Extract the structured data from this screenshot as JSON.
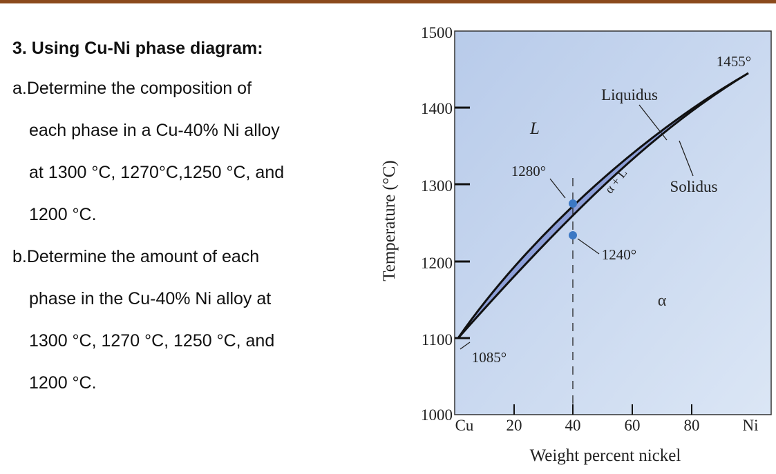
{
  "question": {
    "title": "3. Using Cu-Ni phase diagram:",
    "lines": [
      "a.Determine the composition of",
      "each phase in a Cu-40% Ni alloy",
      "at 1300 °C, 1270°C,1250 °C, and",
      "1200 °C.",
      "b.Determine the amount of each",
      "phase in the Cu-40% Ni alloy at",
      "1300 °C, 1270 °C, 1250 °C, and",
      "1200 °C."
    ]
  },
  "diagram": {
    "x_axis_label": "Weight percent nickel",
    "y_axis_label": "Temperature (°C)",
    "x_ticks": [
      "Cu",
      "20",
      "40",
      "60",
      "80",
      "Ni"
    ],
    "y_ticks": [
      "1500",
      "1400",
      "1300",
      "1200",
      "1100",
      "1000"
    ],
    "labels": {
      "L": "L",
      "alpha_L": "α + L",
      "alpha": "α",
      "liquidus": "Liquidus",
      "solidus": "Solidus",
      "t1455": "1455°",
      "t1280": "1280°",
      "t1240": "1240°",
      "t1085": "1085°"
    },
    "colors": {
      "background": "#c5d6ee",
      "two_phase_region": "#8d9fd8",
      "marker": "#3b78c4"
    }
  }
}
